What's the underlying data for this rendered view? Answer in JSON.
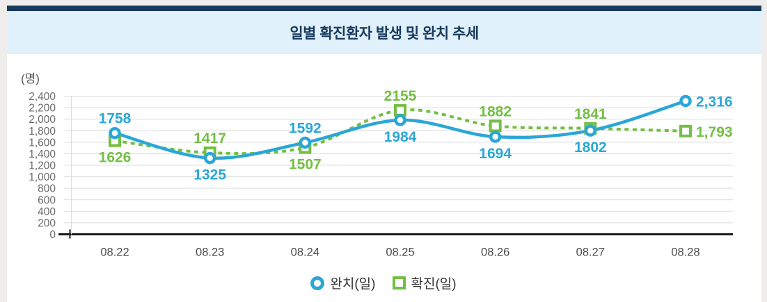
{
  "header": {
    "title": "일별 확진환자 발생 및 완치 추세"
  },
  "colors": {
    "accent_bar": "#17395e",
    "title_band_bg": "#e1f1fb",
    "title_text": "#17395e",
    "recovered_blue": "#2aa7d6",
    "confirmed_green": "#73bf44",
    "gridline": "#dcdcdc",
    "axis_line": "#1a1a1a",
    "y_tick_text": "#6b6b6b",
    "x_tick_text": "#4a4a4a",
    "legend_text": "#333333"
  },
  "chart_data": {
    "type": "line",
    "title": "일별 확진환자 발생 및 완치 추세",
    "unit_label": "(명)",
    "xlabel": "",
    "ylabel": "(명)",
    "categories": [
      "08.22",
      "08.23",
      "08.24",
      "08.25",
      "08.26",
      "08.27",
      "08.28"
    ],
    "series": [
      {
        "name": "완치(일)",
        "marker": "circle",
        "line_style": "solid",
        "color": "#2aa7d6",
        "values": [
          1758,
          1325,
          1592,
          1984,
          1694,
          1802,
          2316
        ],
        "value_labels": [
          "1758",
          "1325",
          "1592",
          "1984",
          "1694",
          "1802",
          "2,316"
        ]
      },
      {
        "name": "확진(일)",
        "marker": "square",
        "line_style": "dashed",
        "color": "#73bf44",
        "values": [
          1626,
          1417,
          1507,
          2155,
          1882,
          1841,
          1793
        ],
        "value_labels": [
          "1626",
          "1417",
          "1507",
          "2155",
          "1882",
          "1841",
          "1,793"
        ]
      }
    ],
    "ylim": [
      0,
      2400
    ],
    "ytick_step": 200,
    "ytick_labels": [
      "0",
      "200",
      "400",
      "600",
      "800",
      "1,000",
      "1,200",
      "1,400",
      "1,600",
      "1,800",
      "2,000",
      "2,200",
      "2,400"
    ],
    "grid": true,
    "legend_position": "bottom"
  }
}
